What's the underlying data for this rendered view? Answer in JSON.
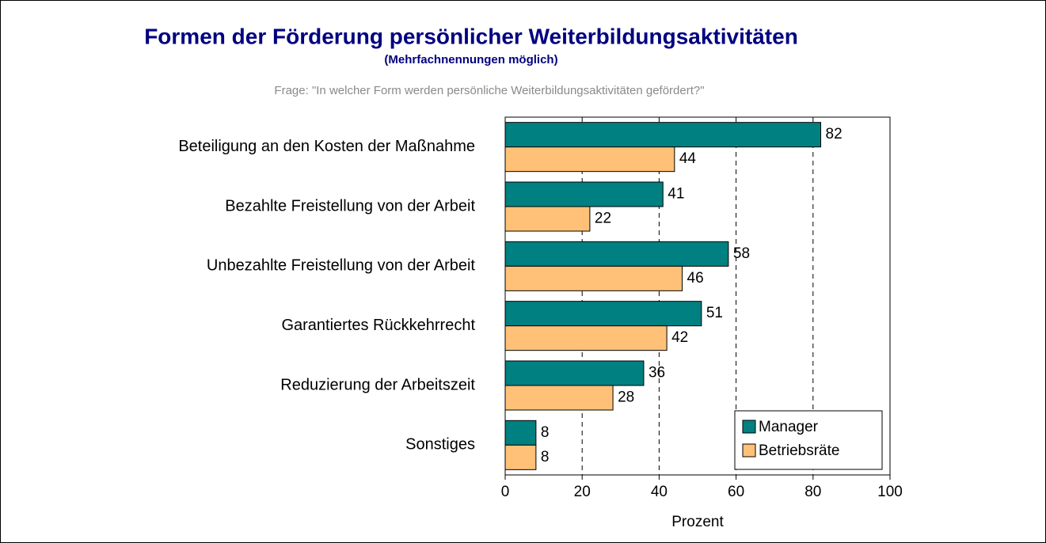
{
  "chart_data": {
    "type": "bar",
    "orientation": "horizontal",
    "title": "Formen der Förderung persönlicher Weiterbildungsaktivitäten",
    "subtitle": "(Mehrfachnennungen möglich)",
    "question": "Frage: \"In welcher Form werden persönliche Weiterbildungsaktivitäten gefördert?\"",
    "categories": [
      "Beteiligung an den Kosten der Maßnahme",
      "Bezahlte Freistellung von der Arbeit",
      "Unbezahlte Freistellung von der Arbeit",
      "Garantiertes Rückkehrrecht",
      "Reduzierung der Arbeitszeit",
      "Sonstiges"
    ],
    "series": [
      {
        "name": "Manager",
        "color": "#008080",
        "values": [
          82,
          41,
          58,
          51,
          36,
          8
        ]
      },
      {
        "name": "Betriebsräte",
        "color": "#ffc177",
        "values": [
          44,
          22,
          46,
          42,
          28,
          8
        ]
      }
    ],
    "xlabel": "Prozent",
    "xlim": [
      0,
      100
    ],
    "xticks": [
      0,
      20,
      40,
      60,
      80,
      100
    ],
    "grid": true,
    "legend": "lower right"
  }
}
